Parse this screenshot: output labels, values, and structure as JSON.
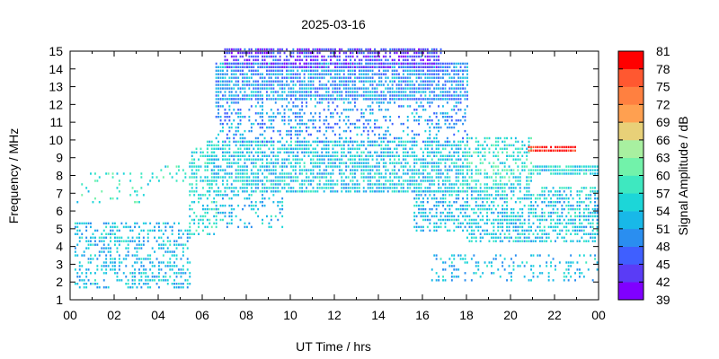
{
  "chart_data": {
    "type": "heatmap",
    "title": "2025-03-16",
    "xlabel": "UT Time / hrs",
    "ylabel": "Frequency / MHz",
    "colorbar_label": "Signal Amplitude / dB",
    "xlim": [
      0,
      24
    ],
    "ylim": [
      1,
      15
    ],
    "x_ticks": [
      "00",
      "02",
      "04",
      "06",
      "08",
      "10",
      "12",
      "14",
      "16",
      "18",
      "20",
      "22",
      "00"
    ],
    "y_ticks": [
      "1",
      "2",
      "3",
      "4",
      "5",
      "6",
      "7",
      "8",
      "9",
      "10",
      "11",
      "12",
      "13",
      "14",
      "15"
    ],
    "colorbar_ticks": [
      "39",
      "42",
      "45",
      "48",
      "51",
      "54",
      "57",
      "60",
      "63",
      "66",
      "69",
      "72",
      "75",
      "78",
      "81"
    ],
    "colorbar_range": [
      39,
      81
    ],
    "colorbar_colors": [
      "#8000ff",
      "#5a3cf6",
      "#3f5fff",
      "#2a8ef0",
      "#18b8e8",
      "#1cd6d8",
      "#3ee8c0",
      "#72f2aa",
      "#a8f0a0",
      "#e8d078",
      "#ffa050",
      "#ff8040",
      "#ff5830",
      "#ff0000"
    ],
    "regions": [
      {
        "t0": 0.2,
        "t1": 5.4,
        "f0": 1.6,
        "f1": 5.4,
        "a": 53,
        "d": 0.45
      },
      {
        "t0": 0.2,
        "t1": 3.8,
        "f0": 6.4,
        "f1": 8.2,
        "a": 58,
        "d": 0.12
      },
      {
        "t0": 3.6,
        "t1": 5.2,
        "f0": 7.6,
        "f1": 8.4,
        "a": 58,
        "d": 0.25
      },
      {
        "t0": 5.4,
        "t1": 6.6,
        "f0": 4.6,
        "f1": 9.4,
        "a": 56,
        "d": 0.45
      },
      {
        "t0": 6.2,
        "t1": 18.0,
        "f0": 7.0,
        "f1": 9.8,
        "a": 54,
        "d": 0.7
      },
      {
        "t0": 6.6,
        "t1": 9.6,
        "f0": 5.0,
        "f1": 7.2,
        "a": 53,
        "d": 0.3
      },
      {
        "t0": 6.6,
        "t1": 18.0,
        "f0": 9.8,
        "f1": 12.2,
        "a": 50,
        "d": 0.35
      },
      {
        "t0": 6.6,
        "t1": 18.0,
        "f0": 12.2,
        "f1": 14.2,
        "a": 50,
        "d": 0.8
      },
      {
        "t0": 7.0,
        "t1": 16.8,
        "f0": 14.0,
        "f1": 15.0,
        "a": 44,
        "d": 0.75
      },
      {
        "t0": 15.6,
        "t1": 18.0,
        "f0": 4.8,
        "f1": 7.2,
        "a": 53,
        "d": 0.6
      },
      {
        "t0": 18.0,
        "t1": 24.0,
        "f0": 4.2,
        "f1": 7.4,
        "a": 54,
        "d": 0.6
      },
      {
        "t0": 18.0,
        "t1": 21.0,
        "f0": 7.2,
        "f1": 10.0,
        "a": 57,
        "d": 0.5
      },
      {
        "t0": 21.0,
        "t1": 24.0,
        "f0": 8.0,
        "f1": 8.5,
        "a": 55,
        "d": 0.9
      },
      {
        "t0": 20.8,
        "t1": 23.0,
        "f0": 9.3,
        "f1": 9.6,
        "a": 80,
        "d": 0.9
      },
      {
        "t0": 16.4,
        "t1": 24.0,
        "f0": 2.0,
        "f1": 3.6,
        "a": 53,
        "d": 0.25
      }
    ]
  }
}
